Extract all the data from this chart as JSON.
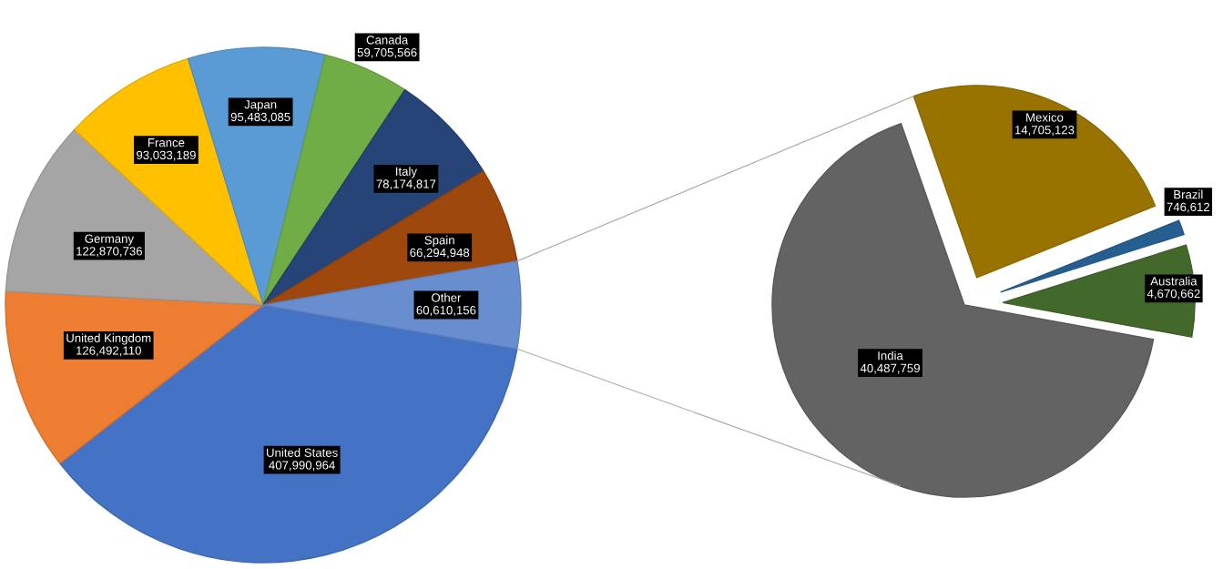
{
  "chart_data": [
    {
      "type": "pie",
      "categories": [
        "United States",
        "United Kingdom",
        "Germany",
        "France",
        "Japan",
        "Canada",
        "Italy",
        "Spain",
        "Other"
      ],
      "values": [
        407990964,
        126492110,
        122870736,
        93033189,
        95483085,
        59705566,
        78174817,
        66294948,
        60610156
      ],
      "colors": [
        "#4472c4",
        "#ed7d31",
        "#a5a5a5",
        "#ffc000",
        "#5b9bd5",
        "#70ad47",
        "#264478",
        "#9e480e",
        "#698ed0"
      ],
      "value_labels": [
        "407,990,964",
        "126,492,110",
        "122,870,736",
        "93,033,189",
        "95,483,085",
        "59,705,566",
        "78,174,817",
        "66,294,948",
        "60,610,156"
      ]
    },
    {
      "type": "pie",
      "categories": [
        "India",
        "Mexico",
        "Brazil",
        "Australia"
      ],
      "values": [
        40487759,
        14705123,
        746612,
        4670662
      ],
      "colors": [
        "#636363",
        "#997300",
        "#255e91",
        "#43682b"
      ],
      "value_labels": [
        "40,487,759",
        "14,705,123",
        "746,612",
        "4,670,662"
      ]
    }
  ]
}
